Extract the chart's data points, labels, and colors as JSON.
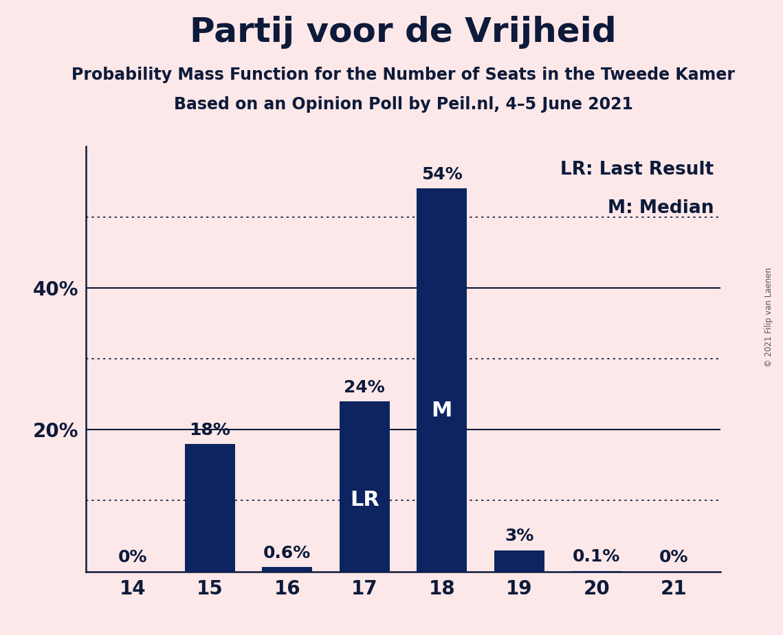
{
  "title": "Partij voor de Vrijheid",
  "subtitle1": "Probability Mass Function for the Number of Seats in the Tweede Kamer",
  "subtitle2": "Based on an Opinion Poll by Peil.nl, 4–5 June 2021",
  "copyright": "© 2021 Filip van Laenen",
  "categories": [
    14,
    15,
    16,
    17,
    18,
    19,
    20,
    21
  ],
  "values": [
    0.0,
    18.0,
    0.6,
    24.0,
    54.0,
    3.0,
    0.1,
    0.0
  ],
  "bar_labels": [
    "0%",
    "18%",
    "0.6%",
    "24%",
    "54%",
    "3%",
    "0.1%",
    "0%"
  ],
  "bar_color": "#0d2461",
  "background_color": "#fce8e8",
  "text_color": "#0d1a3a",
  "last_result_seat": 17,
  "median_seat": 18,
  "lr_label": "LR",
  "m_label": "M",
  "legend_lr": "LR: Last Result",
  "legend_m": "M: Median",
  "ylim": [
    0,
    60
  ],
  "solid_yticks": [
    20,
    40
  ],
  "dotted_yticks": [
    10,
    30,
    50
  ],
  "title_fontsize": 36,
  "subtitle_fontsize": 17,
  "tick_fontsize": 20,
  "bar_label_fontsize": 18,
  "legend_fontsize": 19,
  "inside_label_fontsize": 22
}
